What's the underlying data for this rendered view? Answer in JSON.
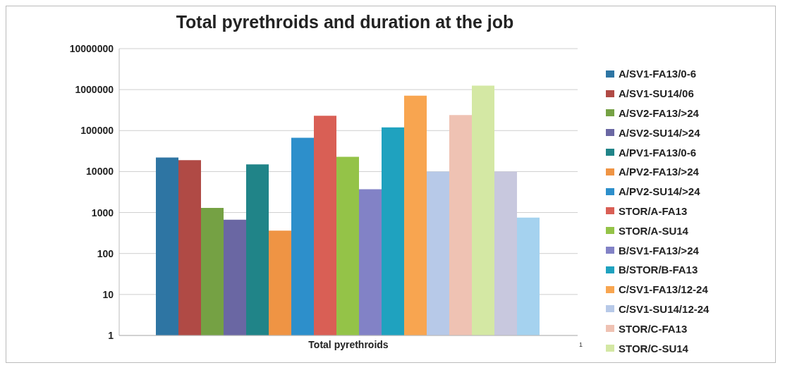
{
  "chart_data": {
    "type": "bar",
    "title": "Total pyrethroids and duration at the job",
    "categories": [
      "Total pyrethroids"
    ],
    "log": true,
    "ylim": [
      1,
      10000000
    ],
    "yticks": [
      1,
      10,
      100,
      1000,
      10000,
      100000,
      1000000,
      10000000
    ],
    "grid": "y",
    "legend": "right",
    "annotations": [
      "1"
    ],
    "series": [
      {
        "name": "A/SV1-FA13/0-6",
        "color": "#2e75a3",
        "values": [
          22000
        ]
      },
      {
        "name": "A/SV1-SU14/06",
        "color": "#b04a45",
        "values": [
          19000
        ]
      },
      {
        "name": "A/SV2-FA13/>24",
        "color": "#75a144",
        "values": [
          1300
        ]
      },
      {
        "name": "A/SV2-SU14/>24",
        "color": "#6a67a3",
        "values": [
          670
        ]
      },
      {
        "name": "A/PV1-FA13/0-6",
        "color": "#208488",
        "values": [
          15000
        ]
      },
      {
        "name": "A/PV2-FA13/>24",
        "color": "#ef9444",
        "values": [
          360
        ]
      },
      {
        "name": "A/PV2-SU14/>24",
        "color": "#2d8fcb",
        "values": [
          67000
        ]
      },
      {
        "name": "STOR/A-FA13",
        "color": "#d95f55",
        "values": [
          230000
        ]
      },
      {
        "name": "STOR/A-SU14",
        "color": "#94c348",
        "values": [
          23000
        ]
      },
      {
        "name": "B/SV1-FA13/>24",
        "color": "#8282c6",
        "values": [
          3700
        ]
      },
      {
        "name": "B/STOR/B-FA13",
        "color": "#1fa2bf",
        "values": [
          120000
        ]
      },
      {
        "name": "C/SV1-FA13/12-24",
        "color": "#f8a550",
        "values": [
          710000
        ]
      },
      {
        "name": "C/SV1-SU14/12-24",
        "color": "#b7c9e8",
        "values": [
          10000
        ]
      },
      {
        "name": "STOR/C-FA13",
        "color": "#efc2b3",
        "values": [
          240000
        ]
      },
      {
        "name": "STOR/C-SU14",
        "color": "#d4e8a4",
        "values": [
          1250000
        ]
      },
      {
        "color": "#c8c8de",
        "values": [
          10000
        ]
      },
      {
        "color": "#a5d2ef",
        "values": [
          750
        ]
      }
    ]
  }
}
